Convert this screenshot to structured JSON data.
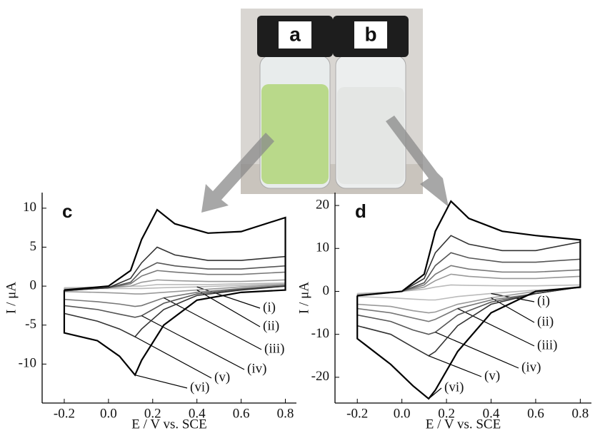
{
  "photo": {
    "labels": [
      "a",
      "b"
    ]
  },
  "chart_data": [
    {
      "type": "line",
      "panel": "c",
      "ylabel": "I / μA",
      "xlabel": "E / V vs. SCE",
      "xlim": [
        -0.3,
        0.85
      ],
      "ylim": [
        -15,
        12
      ],
      "xticks": [
        -0.2,
        {
          "value": 0,
          "label": "0.0"
        },
        0.2,
        0.4,
        0.6,
        0.8
      ],
      "yticks": [
        10,
        5,
        0,
        -5,
        -10
      ],
      "x": [
        -0.2,
        0.0,
        0.1,
        0.15,
        0.22,
        0.3,
        0.45,
        0.6,
        0.8,
        0.8,
        0.6,
        0.4,
        0.25,
        0.15,
        0.12,
        0.05,
        -0.05,
        -0.2,
        -0.2
      ],
      "series": [
        {
          "name": "(i)",
          "color": "#bbbbbb",
          "values": [
            -0.2,
            -0.1,
            0,
            0,
            0.2,
            0.2,
            0.2,
            0.3,
            0.4,
            0.3,
            0.1,
            -0.1,
            -0.2,
            -0.3,
            -0.3,
            -0.3,
            -0.3,
            -0.3,
            -0.2
          ]
        },
        {
          "name": "(ii)",
          "color": "#999999",
          "values": [
            -0.4,
            -0.2,
            0,
            0.5,
            0.8,
            0.7,
            0.6,
            0.6,
            0.8,
            0.2,
            -0.1,
            -0.5,
            -0.8,
            -1,
            -1,
            -0.9,
            -0.8,
            -0.7,
            -0.4
          ]
        },
        {
          "name": "(iii)",
          "color": "#777777",
          "values": [
            -0.5,
            -0.2,
            0.3,
            1.3,
            2,
            1.8,
            1.5,
            1.5,
            1.8,
            0.1,
            -0.3,
            -0.8,
            -1.5,
            -2.5,
            -2.6,
            -2.3,
            -2,
            -1.7,
            -0.5
          ]
        },
        {
          "name": "(iv)",
          "color": "#555555",
          "values": [
            -0.6,
            -0.2,
            0.5,
            2,
            3,
            2.6,
            2.2,
            2.2,
            2.6,
            0,
            -0.4,
            -1,
            -2.2,
            -3.8,
            -4,
            -3.6,
            -3,
            -2.5,
            -0.6
          ]
        },
        {
          "name": "(v)",
          "color": "#333333",
          "values": [
            -0.6,
            -0.2,
            1,
            3,
            5,
            4,
            3.3,
            3.3,
            3.8,
            0,
            -0.5,
            -1.2,
            -3,
            -5.5,
            -6.5,
            -5.5,
            -4.5,
            -3.5,
            -0.6
          ]
        },
        {
          "name": "(vi)",
          "color": "#000000",
          "values": [
            -0.5,
            0,
            2,
            6,
            9.8,
            8,
            6.8,
            7,
            8.8,
            -0.5,
            -0.8,
            -1.8,
            -5,
            -9.5,
            -11.4,
            -9,
            -7,
            -6,
            -0.5
          ]
        }
      ]
    },
    {
      "type": "line",
      "panel": "d",
      "ylabel": "I / μA",
      "xlabel": "E / V vs. SCE",
      "xlim": [
        -0.3,
        0.85
      ],
      "ylim": [
        -26,
        23
      ],
      "xticks": [
        -0.2,
        {
          "value": 0,
          "label": "0.0"
        },
        0.2,
        0.4,
        0.6,
        0.8
      ],
      "yticks": [
        20,
        10,
        0,
        -10,
        -20
      ],
      "x": [
        -0.2,
        0.0,
        0.1,
        0.15,
        0.22,
        0.3,
        0.45,
        0.6,
        0.8,
        0.8,
        0.6,
        0.4,
        0.25,
        0.15,
        0.12,
        0.05,
        -0.05,
        -0.2,
        -0.2
      ],
      "series": [
        {
          "name": "(i)",
          "color": "#bbbbbb",
          "values": [
            -0.5,
            0,
            0.5,
            1,
            1.5,
            1.4,
            1.3,
            1.3,
            1.5,
            0.8,
            0.3,
            -0.5,
            -1.2,
            -2,
            -2,
            -1.8,
            -1.5,
            -1.2,
            -0.5
          ]
        },
        {
          "name": "(ii)",
          "color": "#999999",
          "values": [
            -0.8,
            0,
            1,
            2.5,
            4,
            3.5,
            3,
            3,
            3.5,
            1,
            0,
            -1.5,
            -3,
            -4.8,
            -5,
            -4.5,
            -3.5,
            -3,
            -0.8
          ]
        },
        {
          "name": "(iii)",
          "color": "#777777",
          "values": [
            -1,
            0,
            1.5,
            4,
            6,
            5.2,
            4.5,
            4.5,
            5,
            1,
            -0.5,
            -2,
            -4,
            -6.5,
            -7,
            -6.2,
            -5,
            -4,
            -1
          ]
        },
        {
          "name": "(iv)",
          "color": "#555555",
          "values": [
            -1,
            0,
            2,
            6,
            9,
            7.8,
            6.8,
            6.8,
            7.5,
            1,
            -0.5,
            -2.5,
            -5.5,
            -9.5,
            -10,
            -9,
            -7,
            -5.5,
            -1
          ]
        },
        {
          "name": "(v)",
          "color": "#333333",
          "values": [
            -1,
            0,
            3,
            9,
            13,
            11,
            9.5,
            9.5,
            11.5,
            1,
            -0.5,
            -3,
            -8,
            -14,
            -15,
            -13,
            -10,
            -8,
            -1
          ]
        },
        {
          "name": "(vi)",
          "color": "#000000",
          "values": [
            -1,
            0,
            4,
            14,
            21,
            17,
            14,
            13,
            12,
            1,
            0,
            -5,
            -14,
            -23,
            -25,
            -22,
            -17,
            -11,
            -1
          ]
        }
      ]
    }
  ]
}
